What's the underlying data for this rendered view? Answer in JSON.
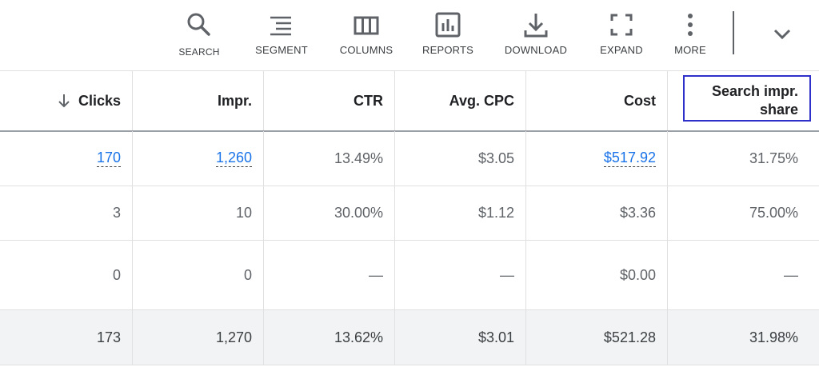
{
  "toolbar": {
    "search_label": "SEARCH",
    "segment_label": "SEGMENT",
    "columns_label": "COLUMNS",
    "reports_label": "REPORTS",
    "download_label": "DOWNLOAD",
    "expand_label": "EXPAND",
    "more_label": "MORE",
    "icons": [
      "search-icon",
      "segment-icon",
      "columns-icon",
      "reports-icon",
      "download-icon",
      "expand-icon",
      "more-icon",
      "chevron-down-icon"
    ]
  },
  "table": {
    "headers": {
      "clicks": "Clicks",
      "impr": "Impr.",
      "ctr": "CTR",
      "avg_cpc": "Avg. CPC",
      "cost": "Cost",
      "sis_line1": "Search impr.",
      "sis_line2": "share"
    },
    "sort": "descending",
    "rows": [
      {
        "clicks": "170",
        "impr": "1,260",
        "ctr": "13.49%",
        "avg_cpc": "$3.05",
        "cost": "$517.92",
        "sis": "31.75%"
      },
      {
        "clicks": "3",
        "impr": "10",
        "ctr": "30.00%",
        "avg_cpc": "$1.12",
        "cost": "$3.36",
        "sis": "75.00%"
      },
      {
        "clicks": "0",
        "impr": "0",
        "ctr": "—",
        "avg_cpc": "—",
        "cost": "$0.00",
        "sis": "—"
      }
    ],
    "total": {
      "clicks": "173",
      "impr": "1,270",
      "ctr": "13.62%",
      "avg_cpc": "$3.01",
      "cost": "$521.28",
      "sis": "31.98%"
    }
  },
  "colors": {
    "link": "#1a73e8",
    "highlight_border": "#2f2fc9",
    "total_row_bg": "#f1f3f4"
  }
}
